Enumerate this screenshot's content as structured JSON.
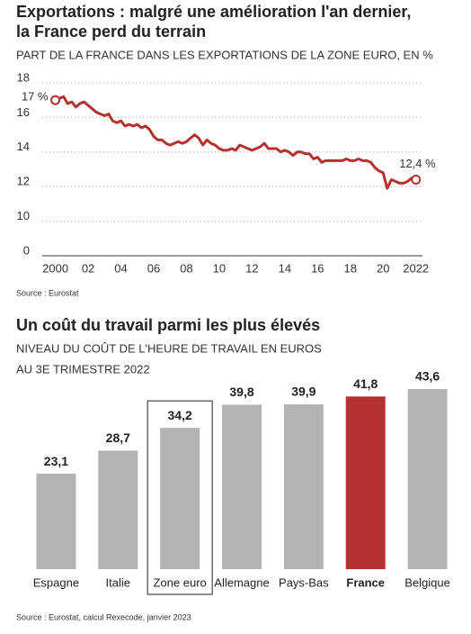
{
  "chart_data": [
    {
      "type": "line",
      "title": [
        "Exportations : malgré une amélioration l'an dernier,",
        "la France perd du terrain"
      ],
      "subtitle": [
        "PART DE LA FRANCE DANS LES EXPORTATIONS DE LA ZONE EURO, EN %"
      ],
      "source": "Source : Eurostat",
      "color": "#b5312f",
      "x": [
        2000,
        2000.25,
        2000.5,
        2000.75,
        2001,
        2001.25,
        2001.5,
        2001.75,
        2002,
        2002.25,
        2002.5,
        2002.75,
        2003,
        2003.25,
        2003.5,
        2003.75,
        2004,
        2004.25,
        2004.5,
        2004.75,
        2005,
        2005.25,
        2005.5,
        2005.75,
        2006,
        2006.25,
        2006.5,
        2006.75,
        2007,
        2007.25,
        2007.5,
        2007.75,
        2008,
        2008.25,
        2008.5,
        2008.75,
        2009,
        2009.25,
        2009.5,
        2009.75,
        2010,
        2010.25,
        2010.5,
        2010.75,
        2011,
        2011.25,
        2011.5,
        2011.75,
        2012,
        2012.25,
        2012.5,
        2012.75,
        2013,
        2013.25,
        2013.5,
        2013.75,
        2014,
        2014.25,
        2014.5,
        2014.75,
        2015,
        2015.25,
        2015.5,
        2015.75,
        2016,
        2016.25,
        2016.5,
        2016.75,
        2017,
        2017.25,
        2017.5,
        2017.75,
        2018,
        2018.25,
        2018.5,
        2018.75,
        2019,
        2019.25,
        2019.5,
        2019.75,
        2020,
        2020.25,
        2020.5,
        2020.75,
        2021,
        2021.25,
        2021.5,
        2021.75,
        2022
      ],
      "values": [
        17,
        17.1,
        17.2,
        16.8,
        16.9,
        16.6,
        16.8,
        16.9,
        16.7,
        16.5,
        16.3,
        16.2,
        16.1,
        16.2,
        15.8,
        15.7,
        15.8,
        15.5,
        15.6,
        15.5,
        15.6,
        15.4,
        15.5,
        15.3,
        14.9,
        14.7,
        14.7,
        14.5,
        14.4,
        14.5,
        14.6,
        14.5,
        14.6,
        14.8,
        15.0,
        14.8,
        14.4,
        14.7,
        14.5,
        14.4,
        14.2,
        14.1,
        14.1,
        14.2,
        14.1,
        14.4,
        14.3,
        14.2,
        14.1,
        14.2,
        14.3,
        14.5,
        14.2,
        14.2,
        14.2,
        14.0,
        14.1,
        14.0,
        13.8,
        14.0,
        14.0,
        13.9,
        13.9,
        13.6,
        13.7,
        13.4,
        13.5,
        13.5,
        13.5,
        13.5,
        13.5,
        13.6,
        13.5,
        13.5,
        13.6,
        13.5,
        13.5,
        13.4,
        13.1,
        12.9,
        12.8,
        11.9,
        12.4,
        12.3,
        12.2,
        12.2,
        12.3,
        12.5,
        12.4
      ],
      "value_labels": [
        "17 %",
        null,
        null,
        null,
        null,
        null,
        null,
        null,
        null,
        null,
        null,
        null,
        null,
        null,
        null,
        null,
        null,
        null,
        null,
        null,
        null,
        null,
        null,
        null,
        null,
        null,
        null,
        null,
        null,
        null,
        null,
        null,
        null,
        null,
        null,
        null,
        null,
        null,
        null,
        null,
        null,
        null,
        null,
        null,
        null,
        null,
        null,
        null,
        null,
        null,
        null,
        null,
        null,
        null,
        null,
        null,
        null,
        null,
        null,
        null,
        null,
        null,
        null,
        null,
        null,
        null,
        null,
        null,
        null,
        null,
        null,
        null,
        null,
        null,
        null,
        null,
        null,
        null,
        null,
        null,
        null,
        null,
        null,
        null,
        null,
        null,
        null,
        null,
        "12,4 %"
      ],
      "xlim": [
        1999.2,
        2022.4
      ],
      "xticks": [
        2000,
        {
          "value": 2002,
          "label": "02"
        },
        {
          "value": 2004,
          "label": "04"
        },
        {
          "value": 2006,
          "label": "06"
        },
        {
          "value": 2008,
          "label": "08"
        },
        {
          "value": 2010,
          "label": "10"
        },
        {
          "value": 2012,
          "label": "12"
        },
        {
          "value": 2014,
          "label": "14"
        },
        {
          "value": 2016,
          "label": "16"
        },
        {
          "value": 2018,
          "label": "18"
        },
        {
          "value": 2020,
          "label": "20"
        },
        2022
      ],
      "ylim": [
        0,
        18
      ],
      "yticks": [
        0,
        10,
        12,
        14,
        16,
        18
      ],
      "grid": true
    },
    {
      "type": "bar",
      "title": [
        "Un coût du travail parmi les plus élevés"
      ],
      "subtitle": [
        "NIVEAU DU COÛT DE L'HEURE DE TRAVAIL EN EUROS",
        "AU 3E TRIMESTRE 2022"
      ],
      "source": "Source : Eurostat, calcul Rexecode, janvier 2023",
      "categories": [
        "Espagne",
        "Italie",
        "Zone euro",
        "Allemagne",
        "Pays-Bas",
        "France",
        "Belgique"
      ],
      "values": [
        23.1,
        28.7,
        34.2,
        39.8,
        39.9,
        41.8,
        43.6
      ],
      "value_labels": [
        "23,1",
        "28,7",
        "34,2",
        "39,8",
        "39,9",
        "41,8",
        "43,6"
      ],
      "colors": [
        "#b3b3b3",
        "#b3b3b3",
        "#b3b3b3",
        "#b3b3b3",
        "#b3b3b3",
        "#b5312f",
        "#b3b3b3"
      ],
      "highlight": "France",
      "boxed": "Zone euro",
      "ylim": [
        0,
        45
      ]
    }
  ]
}
